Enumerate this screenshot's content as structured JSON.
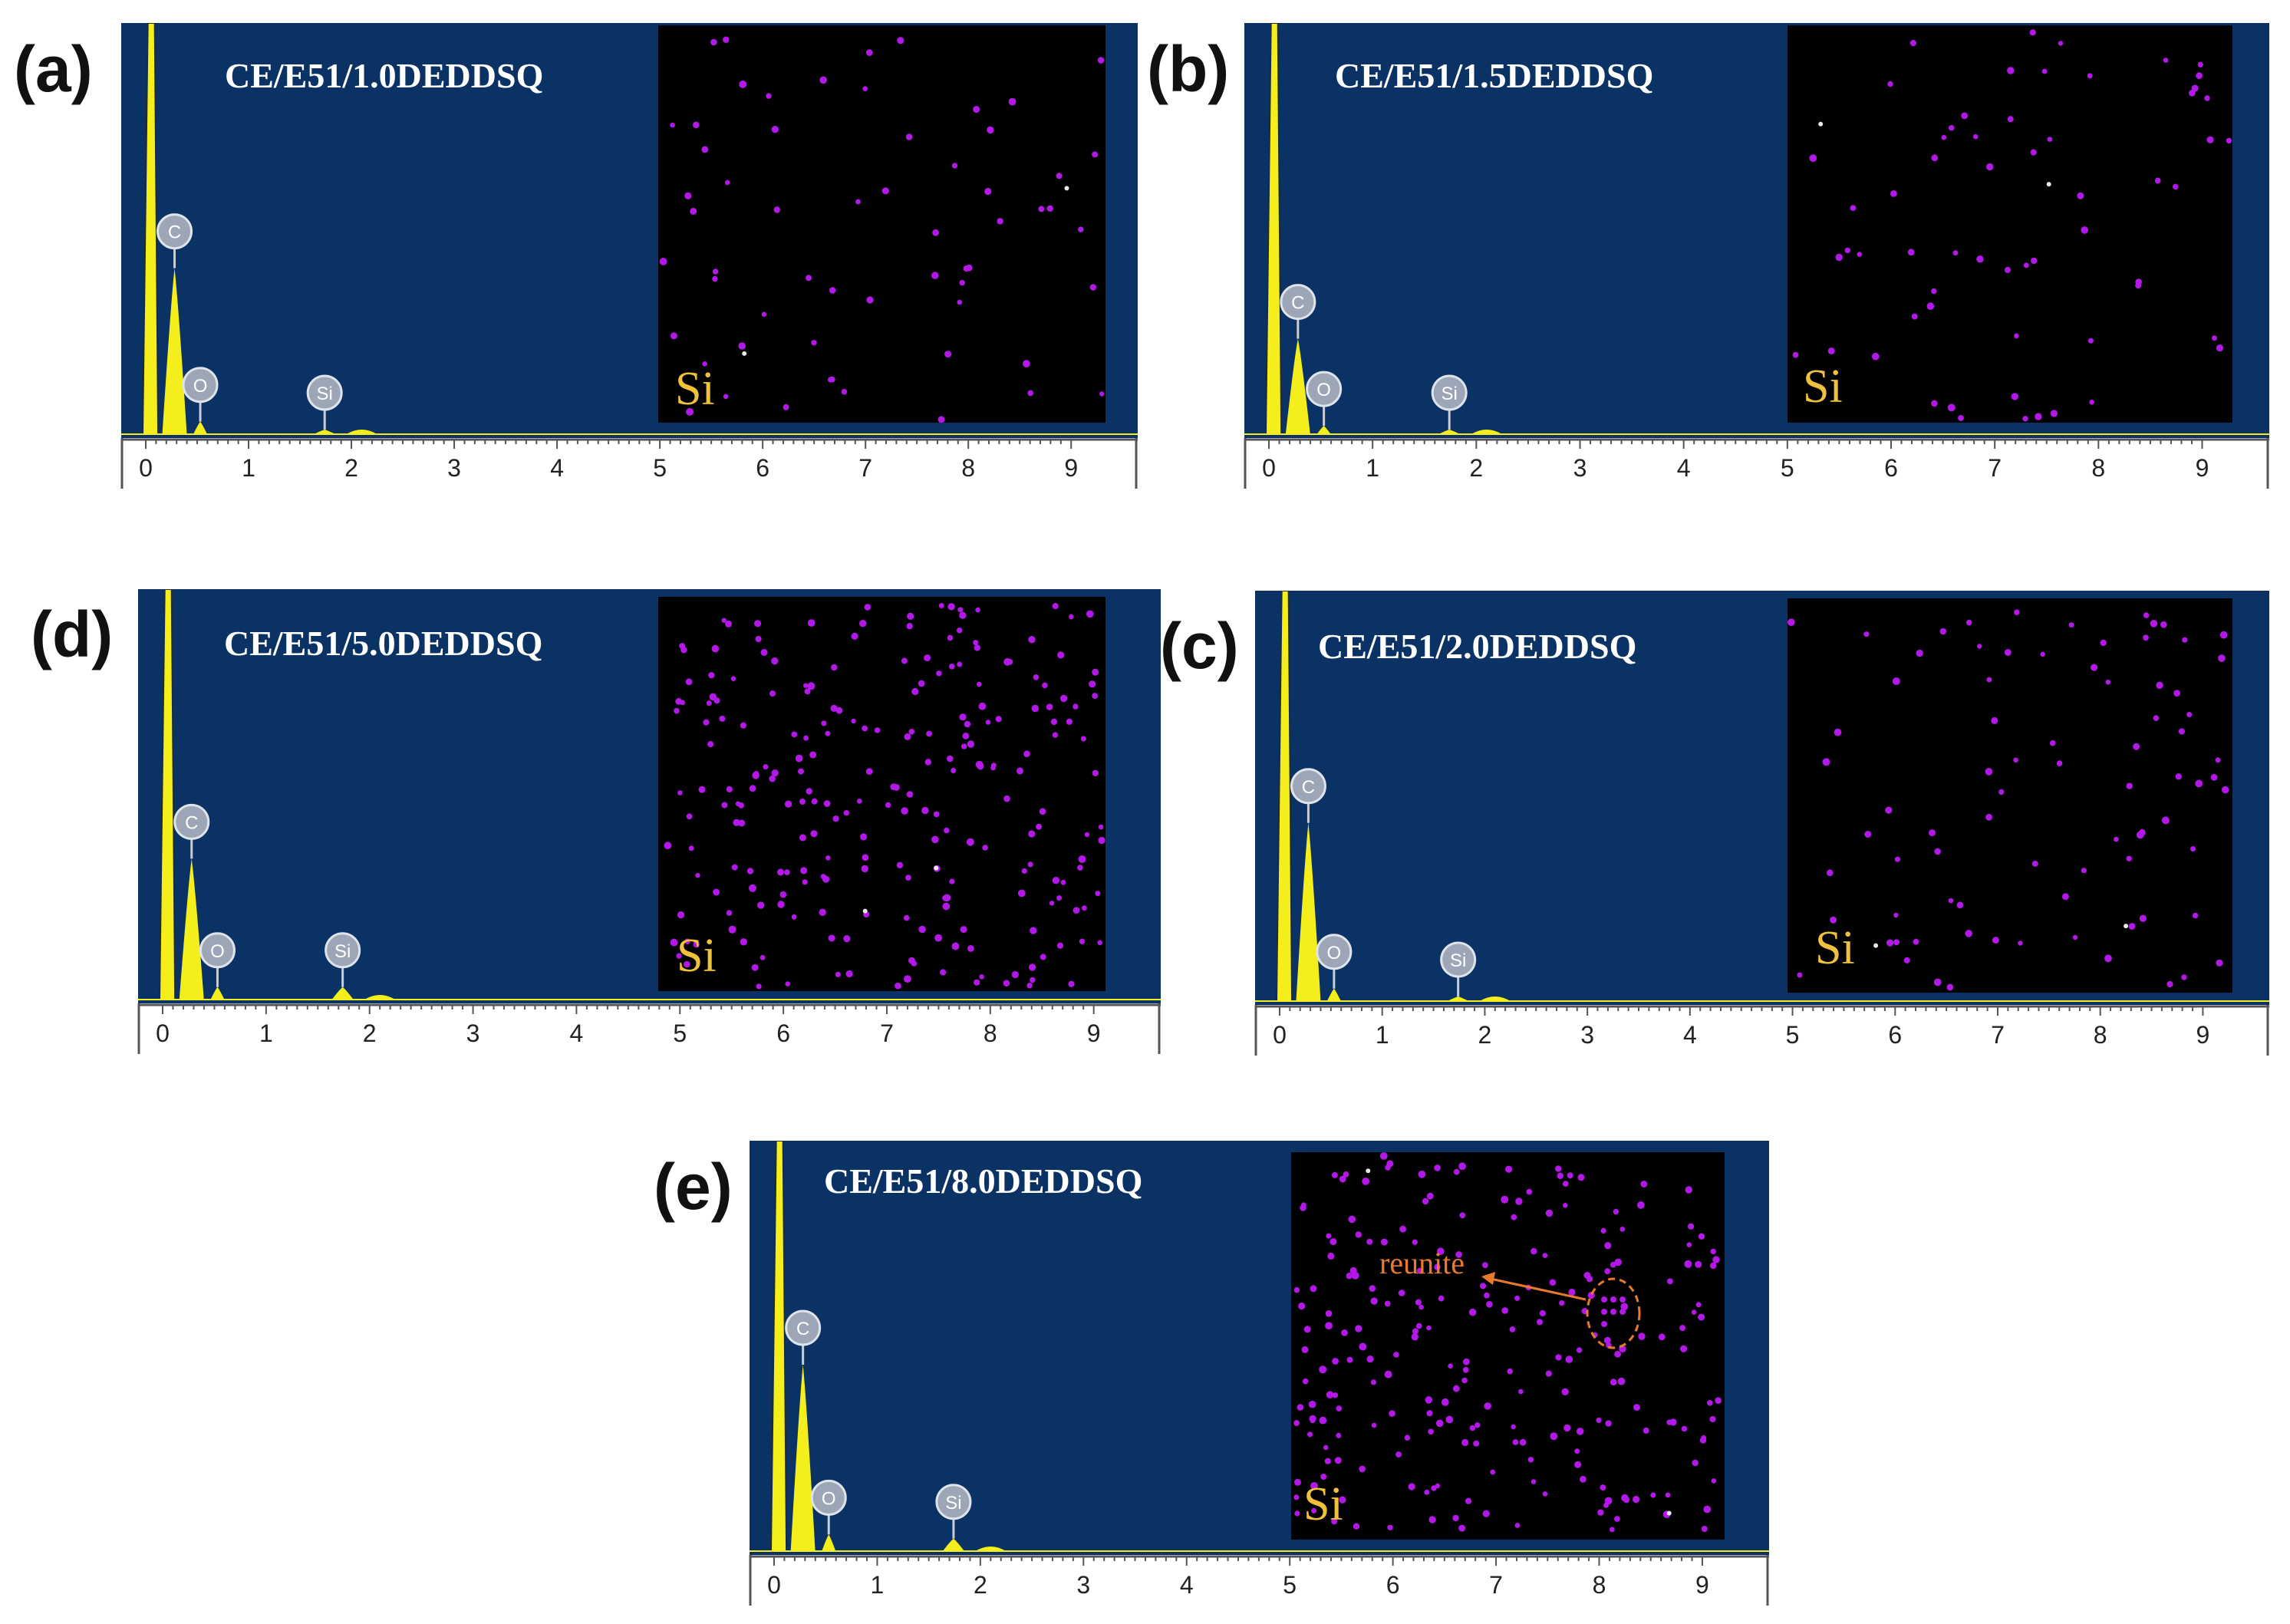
{
  "chart_data": [
    {
      "type": "bar",
      "panel": "(a)",
      "title": "CE/E51/1.0DEDDSQ",
      "map_label": "Si",
      "xlim": [
        0,
        9
      ],
      "x_ticks": [
        "0",
        "1",
        "2",
        "3",
        "4",
        "5",
        "6",
        "7",
        "8",
        "9"
      ],
      "peaks": [
        {
          "element": "C",
          "energy_keV": 0.28,
          "relative_height": 0.4
        },
        {
          "element": "O",
          "energy_keV": 0.53,
          "relative_height": 0.03
        },
        {
          "element": "Si",
          "energy_keV": 1.74,
          "relative_height": 0.01
        }
      ],
      "si_dot_density": "low"
    },
    {
      "type": "bar",
      "panel": "(b)",
      "title": "CE/E51/1.5DEDDSQ",
      "map_label": "Si",
      "xlim": [
        0,
        9
      ],
      "x_ticks": [
        "0",
        "1",
        "2",
        "3",
        "4",
        "5",
        "6",
        "7",
        "8",
        "9"
      ],
      "peaks": [
        {
          "element": "C",
          "energy_keV": 0.28,
          "relative_height": 0.23
        },
        {
          "element": "O",
          "energy_keV": 0.53,
          "relative_height": 0.02
        },
        {
          "element": "Si",
          "energy_keV": 1.74,
          "relative_height": 0.01
        }
      ],
      "si_dot_density": "low"
    },
    {
      "type": "bar",
      "panel": "(d)",
      "title": "CE/E51/5.0DEDDSQ",
      "map_label": "Si",
      "xlim": [
        0,
        9
      ],
      "x_ticks": [
        "0",
        "1",
        "2",
        "3",
        "4",
        "5",
        "6",
        "7",
        "8",
        "9"
      ],
      "peaks": [
        {
          "element": "C",
          "energy_keV": 0.28,
          "relative_height": 0.34
        },
        {
          "element": "O",
          "energy_keV": 0.53,
          "relative_height": 0.03
        },
        {
          "element": "Si",
          "energy_keV": 1.74,
          "relative_height": 0.03
        }
      ],
      "si_dot_density": "high"
    },
    {
      "type": "bar",
      "panel": "(c)",
      "title": "CE/E51/2.0DEDDSQ",
      "map_label": "Si",
      "xlim": [
        0,
        9
      ],
      "x_ticks": [
        "0",
        "1",
        "2",
        "3",
        "4",
        "5",
        "6",
        "7",
        "8",
        "9"
      ],
      "peaks": [
        {
          "element": "C",
          "energy_keV": 0.28,
          "relative_height": 0.43
        },
        {
          "element": "O",
          "energy_keV": 0.53,
          "relative_height": 0.03
        },
        {
          "element": "Si",
          "energy_keV": 1.74,
          "relative_height": 0.01
        }
      ],
      "si_dot_density": "medium"
    },
    {
      "type": "bar",
      "panel": "(e)",
      "title": "CE/E51/8.0DEDDSQ",
      "map_label": "Si",
      "annotation": "reunite",
      "xlim": [
        0,
        9
      ],
      "x_ticks": [
        "0",
        "1",
        "2",
        "3",
        "4",
        "5",
        "6",
        "7",
        "8",
        "9"
      ],
      "peaks": [
        {
          "element": "C",
          "energy_keV": 0.28,
          "relative_height": 0.45
        },
        {
          "element": "O",
          "energy_keV": 0.53,
          "relative_height": 0.04
        },
        {
          "element": "Si",
          "energy_keV": 1.74,
          "relative_height": 0.03
        }
      ],
      "si_dot_density": "high"
    }
  ],
  "colors": {
    "spectrum_bg": "#0b3264",
    "peak": "#f3ee1c",
    "map_bg": "#000000",
    "si_dot": "#b318e8",
    "map_label": "#f0c23c",
    "reunite": "#e87a2a",
    "marker_fill": "#9da6b6"
  }
}
